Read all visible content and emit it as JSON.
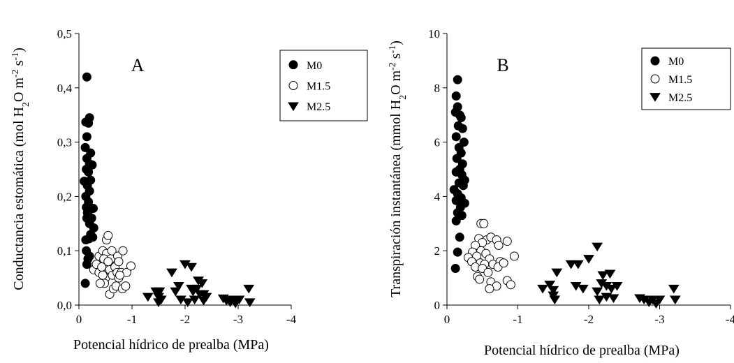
{
  "chart_data": [
    {
      "type": "scatter",
      "panel_label": "A",
      "xlabel": "Potencial hídrico de prealba (MPa)",
      "ylabel": {
        "main": "Conductancia estomática (mol H",
        "sub": "2",
        "mid": "O m",
        "sup1": "-2",
        "end": " s",
        "sup2": "-1",
        "close": ")"
      },
      "x_ticks": [
        "0",
        "-1",
        "-2",
        "-3",
        "-4"
      ],
      "y_ticks": [
        "0,0",
        "0,1",
        "0,2",
        "0,3",
        "0,4",
        "0,5"
      ],
      "xlim": [
        0,
        -4
      ],
      "ylim": [
        0,
        0.5
      ],
      "legend_position": "top-right",
      "series": [
        {
          "name": "M0",
          "marker": "filled-circle",
          "points": [
            [
              -0.12,
              0.04
            ],
            [
              -0.15,
              0.42
            ],
            [
              -0.13,
              0.337
            ],
            [
              -0.2,
              0.345
            ],
            [
              -0.15,
              0.31
            ],
            [
              -0.18,
              0.335
            ],
            [
              -0.12,
              0.29
            ],
            [
              -0.22,
              0.28
            ],
            [
              -0.25,
              0.258
            ],
            [
              -0.15,
              0.27
            ],
            [
              -0.2,
              0.26
            ],
            [
              -0.14,
              0.25
            ],
            [
              -0.18,
              0.245
            ],
            [
              -0.22,
              0.23
            ],
            [
              -0.1,
              0.228
            ],
            [
              -0.16,
              0.22
            ],
            [
              -0.2,
              0.21
            ],
            [
              -0.13,
              0.2
            ],
            [
              -0.18,
              0.19
            ],
            [
              -0.14,
              0.18
            ],
            [
              -0.23,
              0.178
            ],
            [
              -0.19,
              0.175
            ],
            [
              -0.27,
              0.178
            ],
            [
              -0.16,
              0.17
            ],
            [
              -0.24,
              0.16
            ],
            [
              -0.15,
              0.16
            ],
            [
              -0.2,
              0.15
            ],
            [
              -0.28,
              0.142
            ],
            [
              -0.22,
              0.13
            ],
            [
              -0.13,
              0.12
            ],
            [
              -0.19,
              0.122
            ],
            [
              -0.26,
              0.125
            ],
            [
              -0.14,
              0.1
            ],
            [
              -0.2,
              0.09
            ],
            [
              -0.17,
              0.085
            ],
            [
              -0.15,
              0.075
            ]
          ]
        },
        {
          "name": "M1.5",
          "marker": "open-circle",
          "points": [
            [
              -0.28,
              0.065
            ],
            [
              -0.33,
              0.075
            ],
            [
              -0.38,
              0.09
            ],
            [
              -0.38,
              0.06
            ],
            [
              -0.43,
              0.07
            ],
            [
              -0.45,
              0.1
            ],
            [
              -0.5,
              0.05
            ],
            [
              -0.48,
              0.04
            ],
            [
              -0.52,
              0.12
            ],
            [
              -0.55,
              0.128
            ],
            [
              -0.52,
              0.095
            ],
            [
              -0.6,
              0.085
            ],
            [
              -0.62,
              0.1
            ],
            [
              -0.58,
              0.065
            ],
            [
              -0.63,
              0.055
            ],
            [
              -0.68,
              0.07
            ],
            [
              -0.58,
              0.02
            ],
            [
              -0.65,
              0.03
            ],
            [
              -0.7,
              0.035
            ],
            [
              -0.73,
              0.09
            ],
            [
              -0.75,
              0.08
            ],
            [
              -0.72,
              0.06
            ],
            [
              -0.75,
              0.05
            ],
            [
              -0.8,
              0.06
            ],
            [
              -0.83,
              0.1
            ],
            [
              -0.82,
              0.03
            ],
            [
              -0.9,
              0.06
            ],
            [
              -0.88,
              0.035
            ],
            [
              -0.98,
              0.072
            ],
            [
              -0.45,
              0.055
            ],
            [
              -0.47,
              0.085
            ],
            [
              -0.55,
              0.08
            ],
            [
              -0.77,
              0.055
            ],
            [
              -0.4,
              0.04
            ]
          ]
        },
        {
          "name": "M2.5",
          "marker": "filled-triangle-down",
          "points": [
            [
              -1.3,
              0.015
            ],
            [
              -1.45,
              0.025
            ],
            [
              -1.5,
              0.005
            ],
            [
              -1.5,
              0.015
            ],
            [
              -1.52,
              0.025
            ],
            [
              -1.55,
              0.01
            ],
            [
              -1.75,
              0.06
            ],
            [
              -1.82,
              0.025
            ],
            [
              -1.88,
              0.035
            ],
            [
              -1.92,
              0.01
            ],
            [
              -2.0,
              0.075
            ],
            [
              -2.05,
              0.005
            ],
            [
              -2.12,
              0.07
            ],
            [
              -2.12,
              0.03
            ],
            [
              -2.18,
              0.01
            ],
            [
              -2.15,
              0.025
            ],
            [
              -2.25,
              0.045
            ],
            [
              -2.28,
              0.02
            ],
            [
              -2.22,
              0.03
            ],
            [
              -2.32,
              0.04
            ],
            [
              -2.35,
              0.02
            ],
            [
              -2.35,
              0.008
            ],
            [
              -2.4,
              0.015
            ],
            [
              -2.72,
              0.012
            ],
            [
              -2.78,
              0.008
            ],
            [
              -2.85,
              0.005
            ],
            [
              -2.9,
              0.01
            ],
            [
              -2.95,
              0.003
            ],
            [
              -3.02,
              0.01
            ],
            [
              -3.2,
              0.03
            ],
            [
              -3.22,
              0.005
            ]
          ]
        }
      ]
    },
    {
      "type": "scatter",
      "panel_label": "B",
      "xlabel": "Potencial hídrico de prealba (MPa)",
      "ylabel": {
        "main": "Transpiración instantánea (mmol H",
        "sub": "2",
        "mid": "O m",
        "sup1": "-2",
        "end": " s",
        "sup2": "-1",
        "close": ")"
      },
      "x_ticks": [
        "0",
        "-1",
        "-2",
        "-3",
        "-4"
      ],
      "y_ticks": [
        "0",
        "2",
        "4",
        "6",
        "8",
        "10"
      ],
      "xlim": [
        0,
        -4
      ],
      "ylim": [
        0,
        10
      ],
      "legend_position": "top-right",
      "series": [
        {
          "name": "M0",
          "marker": "filled-circle",
          "points": [
            [
              -0.15,
              8.3
            ],
            [
              -0.13,
              7.7
            ],
            [
              -0.15,
              7.3
            ],
            [
              -0.12,
              7.1
            ],
            [
              -0.18,
              7.0
            ],
            [
              -0.2,
              6.9
            ],
            [
              -0.16,
              6.6
            ],
            [
              -0.22,
              6.5
            ],
            [
              -0.13,
              6.2
            ],
            [
              -0.24,
              6.0
            ],
            [
              -0.17,
              5.8
            ],
            [
              -0.2,
              5.6
            ],
            [
              -0.14,
              5.4
            ],
            [
              -0.22,
              5.2
            ],
            [
              -0.18,
              5.0
            ],
            [
              -0.13,
              4.9
            ],
            [
              -0.21,
              4.8
            ],
            [
              -0.25,
              4.6
            ],
            [
              -0.17,
              4.5
            ],
            [
              -0.23,
              4.4
            ],
            [
              -0.1,
              4.25
            ],
            [
              -0.15,
              4.1
            ],
            [
              -0.2,
              3.95
            ],
            [
              -0.13,
              3.85
            ],
            [
              -0.25,
              3.75
            ],
            [
              -0.19,
              3.6
            ],
            [
              -0.15,
              3.4
            ],
            [
              -0.21,
              3.3
            ],
            [
              -0.13,
              3.1
            ],
            [
              -0.18,
              2.5
            ],
            [
              -0.15,
              1.95
            ],
            [
              -0.12,
              1.35
            ]
          ]
        },
        {
          "name": "M1.5",
          "marker": "open-circle",
          "points": [
            [
              -0.48,
              3.0
            ],
            [
              -0.52,
              3.0
            ],
            [
              -0.45,
              2.45
            ],
            [
              -0.56,
              2.4
            ],
            [
              -0.5,
              2.3
            ],
            [
              -0.62,
              2.5
            ],
            [
              -0.7,
              2.4
            ],
            [
              -0.73,
              2.2
            ],
            [
              -0.85,
              2.35
            ],
            [
              -0.4,
              2.2
            ],
            [
              -0.48,
              2.0
            ],
            [
              -0.55,
              1.9
            ],
            [
              -0.36,
              1.95
            ],
            [
              -0.42,
              1.8
            ],
            [
              -0.3,
              1.75
            ],
            [
              -0.6,
              1.7
            ],
            [
              -0.35,
              1.6
            ],
            [
              -0.47,
              1.55
            ],
            [
              -0.53,
              1.5
            ],
            [
              -0.65,
              1.5
            ],
            [
              -0.4,
              1.4
            ],
            [
              -0.5,
              1.35
            ],
            [
              -0.75,
              1.6
            ],
            [
              -0.72,
              1.4
            ],
            [
              -0.58,
              1.2
            ],
            [
              -0.43,
              1.05
            ],
            [
              -0.46,
              0.95
            ],
            [
              -0.62,
              0.85
            ],
            [
              -0.7,
              0.7
            ],
            [
              -0.6,
              0.6
            ],
            [
              -0.85,
              0.9
            ],
            [
              -0.95,
              1.8
            ],
            [
              -0.8,
              1.55
            ],
            [
              -0.9,
              0.75
            ]
          ]
        },
        {
          "name": "M2.5",
          "marker": "filled-triangle-down",
          "points": [
            [
              -1.35,
              0.6
            ],
            [
              -1.45,
              0.75
            ],
            [
              -1.5,
              0.55
            ],
            [
              -1.5,
              0.35
            ],
            [
              -1.52,
              0.2
            ],
            [
              -1.55,
              1.2
            ],
            [
              -1.75,
              1.5
            ],
            [
              -1.82,
              0.7
            ],
            [
              -1.85,
              1.5
            ],
            [
              -1.92,
              0.6
            ],
            [
              -2.0,
              1.7
            ],
            [
              -2.12,
              2.15
            ],
            [
              -2.15,
              0.2
            ],
            [
              -2.12,
              0.5
            ],
            [
              -2.18,
              0.8
            ],
            [
              -2.2,
              1.1
            ],
            [
              -2.25,
              0.7
            ],
            [
              -2.25,
              0.3
            ],
            [
              -2.3,
              1.15
            ],
            [
              -2.32,
              0.6
            ],
            [
              -2.35,
              0.25
            ],
            [
              -2.4,
              0.7
            ],
            [
              -2.72,
              0.25
            ],
            [
              -2.78,
              0.2
            ],
            [
              -2.85,
              0.1
            ],
            [
              -2.9,
              0.2
            ],
            [
              -2.95,
              0.05
            ],
            [
              -3.0,
              0.2
            ],
            [
              -3.2,
              0.6
            ],
            [
              -3.22,
              0.2
            ]
          ]
        }
      ]
    }
  ]
}
